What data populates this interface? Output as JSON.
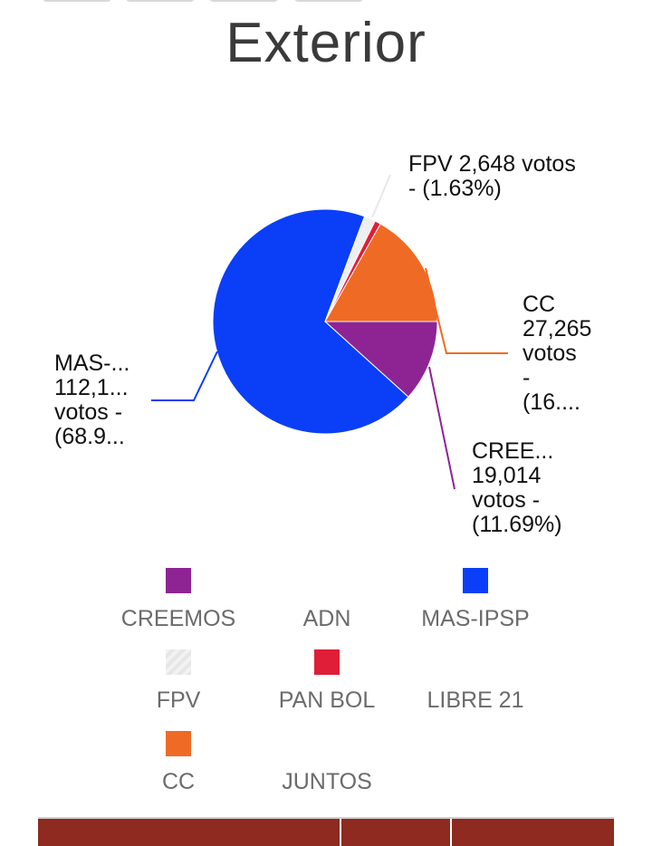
{
  "page": {
    "title": "Exterior"
  },
  "chart_data": {
    "type": "pie",
    "title": "Exterior",
    "unit": "votos",
    "slices": [
      {
        "name": "CREEMOS",
        "value": 19014,
        "percent": 11.69,
        "color": "#8e2494",
        "label_lines": [
          "CREE...",
          "19,014",
          "votos -",
          "(11.69%)"
        ]
      },
      {
        "name": "ADN",
        "value": 0,
        "percent": 0,
        "color": "#0f9d58",
        "label_lines": []
      },
      {
        "name": "MAS-IPSP",
        "value": 112100,
        "percent": 68.9,
        "color": "#0a3ff7",
        "label_lines": [
          "MAS-...",
          "112,1...",
          "votos -",
          "(68.9..."
        ]
      },
      {
        "name": "FPV",
        "value": 2648,
        "percent": 1.63,
        "color": "#eeeeee",
        "label_lines": [
          "FPV 2,648 votos",
          "- (1.63%)"
        ]
      },
      {
        "name": "PAN BOL",
        "value": 1400,
        "percent": 0.86,
        "color": "#e01e37",
        "label_lines": []
      },
      {
        "name": "LIBRE 21",
        "value": 0,
        "percent": 0,
        "color": "#f4b400",
        "label_lines": []
      },
      {
        "name": "CC",
        "value": 27265,
        "percent": 16.76,
        "color": "#ef6a25",
        "label_lines": [
          "CC",
          "27,265",
          "votos",
          "-",
          "(16...."
        ]
      },
      {
        "name": "JUNTOS",
        "value": 0,
        "percent": 0,
        "color": "#46bdc6",
        "label_lines": []
      }
    ],
    "legend": [
      {
        "name": "CREEMOS",
        "color": "#8e2494",
        "swatch": true
      },
      {
        "name": "ADN",
        "color": "#0f9d58",
        "swatch": false
      },
      {
        "name": "MAS-IPSP",
        "color": "#0a3ff7",
        "swatch": true
      },
      {
        "name": "FPV",
        "color": "#eeeeee",
        "swatch": true
      },
      {
        "name": "PAN BOL",
        "color": "#e01e37",
        "swatch": true
      },
      {
        "name": "LIBRE 21",
        "color": "#f4b400",
        "swatch": false
      },
      {
        "name": "CC",
        "color": "#ef6a25",
        "swatch": true
      },
      {
        "name": "JUNTOS",
        "color": "#46bdc6",
        "swatch": false
      }
    ],
    "legend_position": "bottom"
  }
}
